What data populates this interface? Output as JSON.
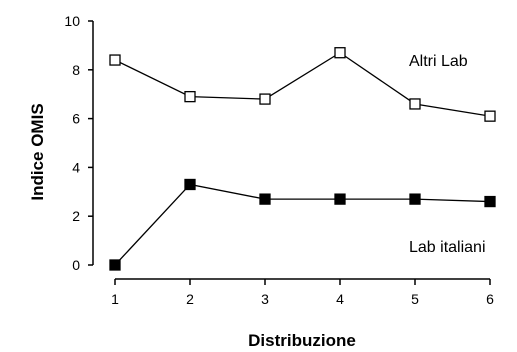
{
  "chart_data": {
    "type": "line",
    "title": "",
    "xlabel": "Distribuzione",
    "ylabel": "Indice OMIS",
    "x": [
      1,
      2,
      3,
      4,
      5,
      6
    ],
    "x_ticks": [
      "1",
      "2",
      "3",
      "4",
      "5",
      "6"
    ],
    "ylim": [
      0,
      10
    ],
    "y_ticks": [
      "0",
      "2",
      "4",
      "6",
      "8",
      "10"
    ],
    "grid": false,
    "legend": "none",
    "series": [
      {
        "name": "Altri Lab",
        "values": [
          8.4,
          6.9,
          6.8,
          8.7,
          6.6,
          6.1
        ],
        "marker": "open-square",
        "color": "#000000"
      },
      {
        "name": "Lab italiani",
        "values": [
          0.0,
          3.3,
          2.7,
          2.7,
          2.7,
          2.6
        ],
        "marker": "filled-square",
        "color": "#000000"
      }
    ]
  }
}
